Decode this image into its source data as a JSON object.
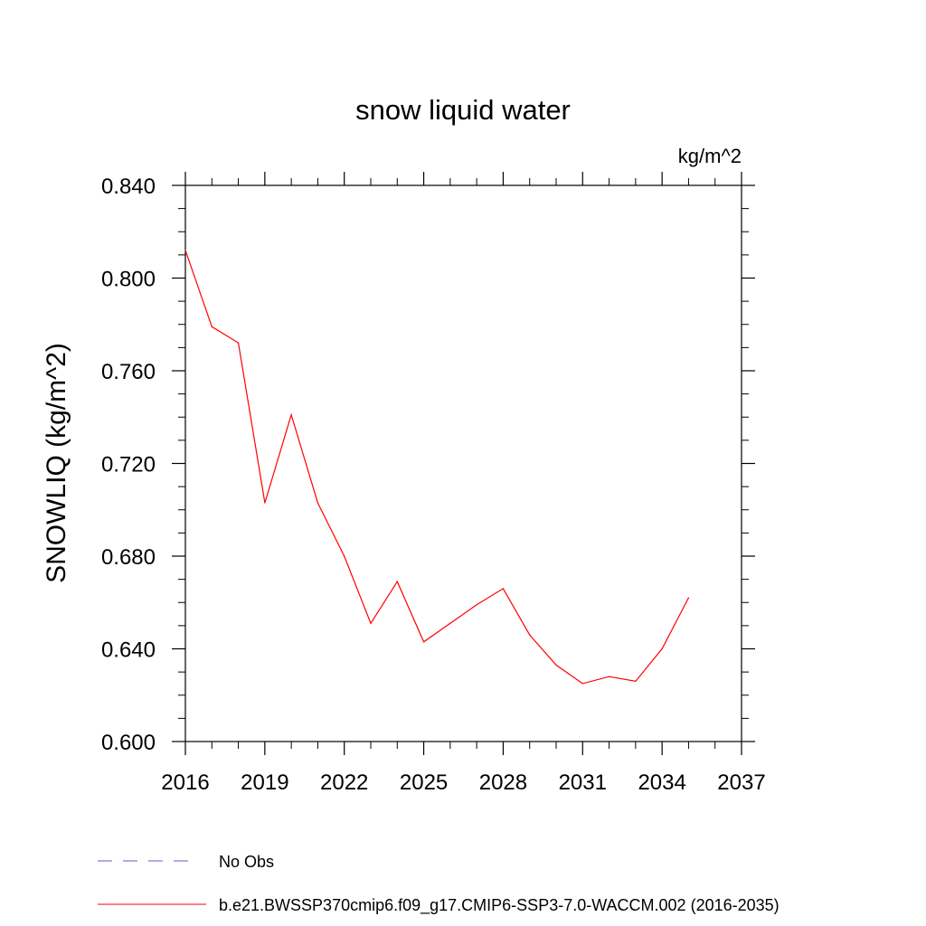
{
  "chart_data": {
    "type": "line",
    "title": "snow liquid water",
    "units": "kg/m^2",
    "ylabel": "SNOWLIQ  (kg/m^2)",
    "xlabel": "",
    "xlim": [
      2016,
      2037
    ],
    "ylim": [
      0.6,
      0.84
    ],
    "xticks": [
      "2016",
      "2019",
      "2022",
      "2025",
      "2028",
      "2031",
      "2034",
      "2037"
    ],
    "yticks": [
      "0.600",
      "0.640",
      "0.680",
      "0.720",
      "0.760",
      "0.800",
      "0.840"
    ],
    "grid": false,
    "legend_position": "bottom-left",
    "series": [
      {
        "name": "b.e21.BWSSP370cmip6.f09_g17.CMIP6-SSP3-7.0-WACCM.002 (2016-2035)",
        "color": "#ff0000",
        "style": "solid",
        "x": [
          2016,
          2017,
          2018,
          2019,
          2020,
          2021,
          2022,
          2023,
          2024,
          2025,
          2026,
          2027,
          2028,
          2029,
          2030,
          2031,
          2032,
          2033,
          2034,
          2035
        ],
        "values": [
          0.812,
          0.779,
          0.772,
          0.703,
          0.741,
          0.703,
          0.68,
          0.651,
          0.669,
          0.643,
          0.651,
          0.659,
          0.666,
          0.646,
          0.633,
          0.625,
          0.628,
          0.626,
          0.64,
          0.662
        ]
      }
    ],
    "legend": [
      {
        "label": "No Obs",
        "color": "#6a5acd",
        "style": "dashed"
      },
      {
        "label": "b.e21.BWSSP370cmip6.f09_g17.CMIP6-SSP3-7.0-WACCM.002 (2016-2035)",
        "color": "#ff0000",
        "style": "solid"
      }
    ]
  }
}
